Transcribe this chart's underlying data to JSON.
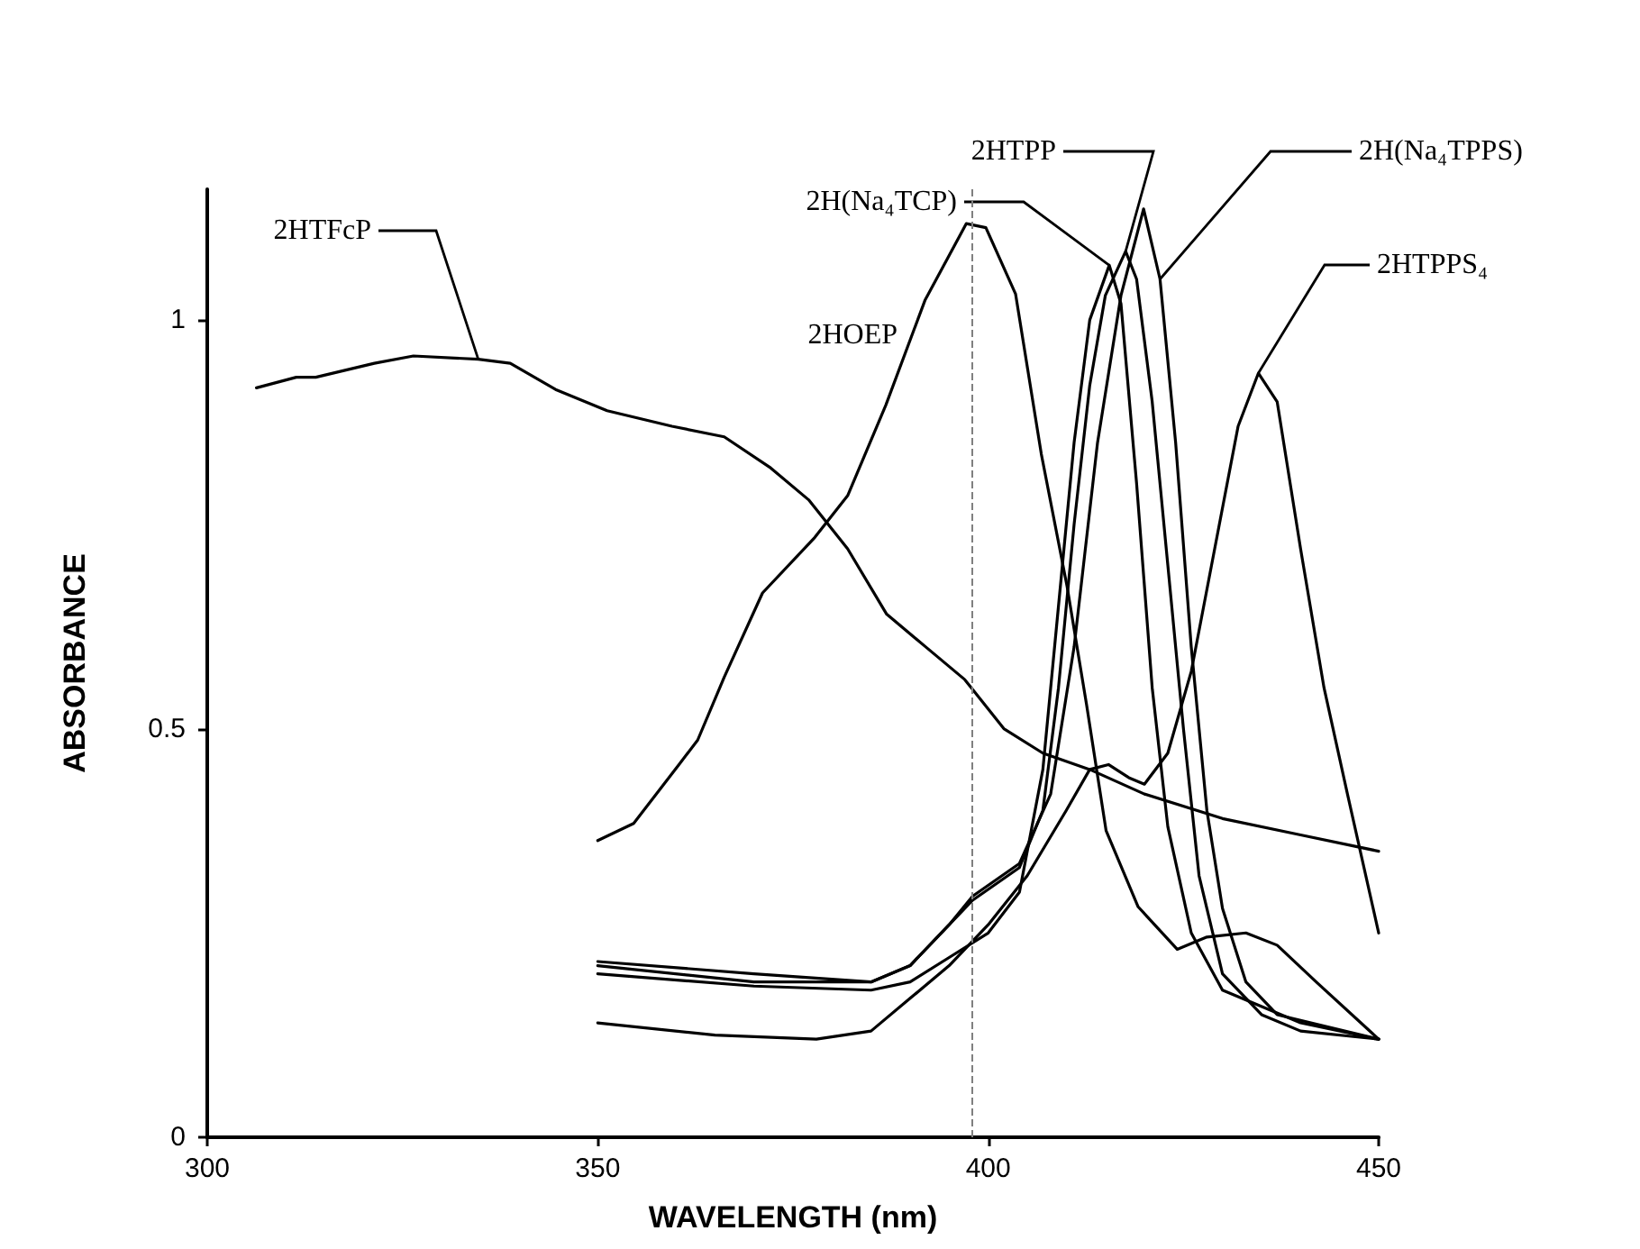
{
  "chart_data": {
    "type": "line",
    "xlabel": "WAVELENGTH (nm)",
    "ylabel": "ABSORBANCE",
    "xlim": [
      300,
      450
    ],
    "xticks": [
      300,
      350,
      400,
      450
    ],
    "ylim": [
      0,
      1.16
    ],
    "yticks": [
      0,
      0.5,
      1
    ],
    "grid": false,
    "legend": false,
    "marker": "none",
    "line_style": "solid",
    "ref_lines": [
      {
        "axis": "x",
        "value": 398,
        "color": "#808080",
        "line_style": "dashed"
      }
    ],
    "series": [
      {
        "name": "2HTFcP",
        "color": "#000000",
        "x": [
          306.3,
          311.4,
          313.9,
          321.4,
          326.4,
          334.7,
          338.8,
          344.6,
          351.2,
          359.5,
          366.2,
          372,
          377,
          382,
          387,
          392,
          397,
          402,
          407,
          413,
          420,
          430,
          440,
          450
        ],
        "values": [
          0.917,
          0.93,
          0.93,
          0.947,
          0.956,
          0.952,
          0.947,
          0.915,
          0.889,
          0.87,
          0.857,
          0.82,
          0.78,
          0.72,
          0.64,
          0.6,
          0.56,
          0.5,
          0.47,
          0.45,
          0.42,
          0.39,
          0.37,
          0.35
        ]
      },
      {
        "name": "2HOEP",
        "color": "#000000",
        "x": [
          350,
          354.6,
          360.4,
          362.8,
          366.2,
          371.1,
          377.8,
          382,
          386.9,
          391.9,
          397.2,
          399.7,
          403.5,
          406.8,
          410.1,
          412.6,
          415.1,
          419.2,
          424.2,
          428,
          433,
          437,
          442,
          450
        ],
        "values": [
          0.363,
          0.384,
          0.456,
          0.486,
          0.563,
          0.666,
          0.734,
          0.785,
          0.896,
          1.024,
          1.118,
          1.113,
          1.032,
          0.836,
          0.674,
          0.529,
          0.375,
          0.282,
          0.23,
          0.245,
          0.25,
          0.235,
          0.19,
          0.12
        ]
      },
      {
        "name": "2H(Na₄TCP)",
        "color": "#000000",
        "x": [
          350,
          370,
          385,
          390,
          395,
          400,
          404,
          407,
          409,
          411,
          413,
          415.5,
          417,
          419,
          421,
          423,
          426,
          430,
          440,
          450
        ],
        "values": [
          0.2,
          0.185,
          0.18,
          0.19,
          0.22,
          0.25,
          0.3,
          0.45,
          0.65,
          0.85,
          1.0,
          1.067,
          1.02,
          0.8,
          0.55,
          0.38,
          0.25,
          0.18,
          0.14,
          0.12
        ]
      },
      {
        "name": "2HTPP",
        "color": "#000000",
        "x": [
          350,
          370,
          385,
          390,
          395,
          398,
          404,
          407,
          409,
          411,
          413,
          415,
          417.6,
          419,
          421,
          423,
          425,
          427,
          430,
          435,
          440,
          450
        ],
        "values": [
          0.21,
          0.19,
          0.19,
          0.21,
          0.26,
          0.29,
          0.33,
          0.4,
          0.55,
          0.75,
          0.92,
          1.03,
          1.084,
          1.05,
          0.9,
          0.7,
          0.5,
          0.32,
          0.2,
          0.15,
          0.13,
          0.12
        ]
      },
      {
        "name": "2H(Na₄TPPS)",
        "color": "#000000",
        "x": [
          350,
          370,
          385,
          390,
          395,
          398,
          404,
          408,
          411,
          414,
          417,
          419.9,
          422,
          424,
          426,
          428,
          430,
          433,
          437,
          450
        ],
        "values": [
          0.215,
          0.2,
          0.19,
          0.21,
          0.26,
          0.295,
          0.335,
          0.42,
          0.6,
          0.85,
          1.03,
          1.136,
          1.05,
          0.85,
          0.6,
          0.4,
          0.28,
          0.19,
          0.15,
          0.12
        ]
      },
      {
        "name": "2HTPPS₄",
        "color": "#000000",
        "x": [
          350,
          365,
          378,
          385,
          390,
          395,
          400,
          405,
          410,
          413,
          415.4,
          418,
          420,
          423,
          426,
          429,
          432,
          434.6,
          437,
          440,
          443,
          446,
          450
        ],
        "values": [
          0.14,
          0.125,
          0.12,
          0.13,
          0.17,
          0.21,
          0.26,
          0.32,
          0.4,
          0.45,
          0.456,
          0.44,
          0.432,
          0.47,
          0.57,
          0.72,
          0.87,
          0.935,
          0.9,
          0.72,
          0.55,
          0.42,
          0.25
        ]
      }
    ]
  }
}
